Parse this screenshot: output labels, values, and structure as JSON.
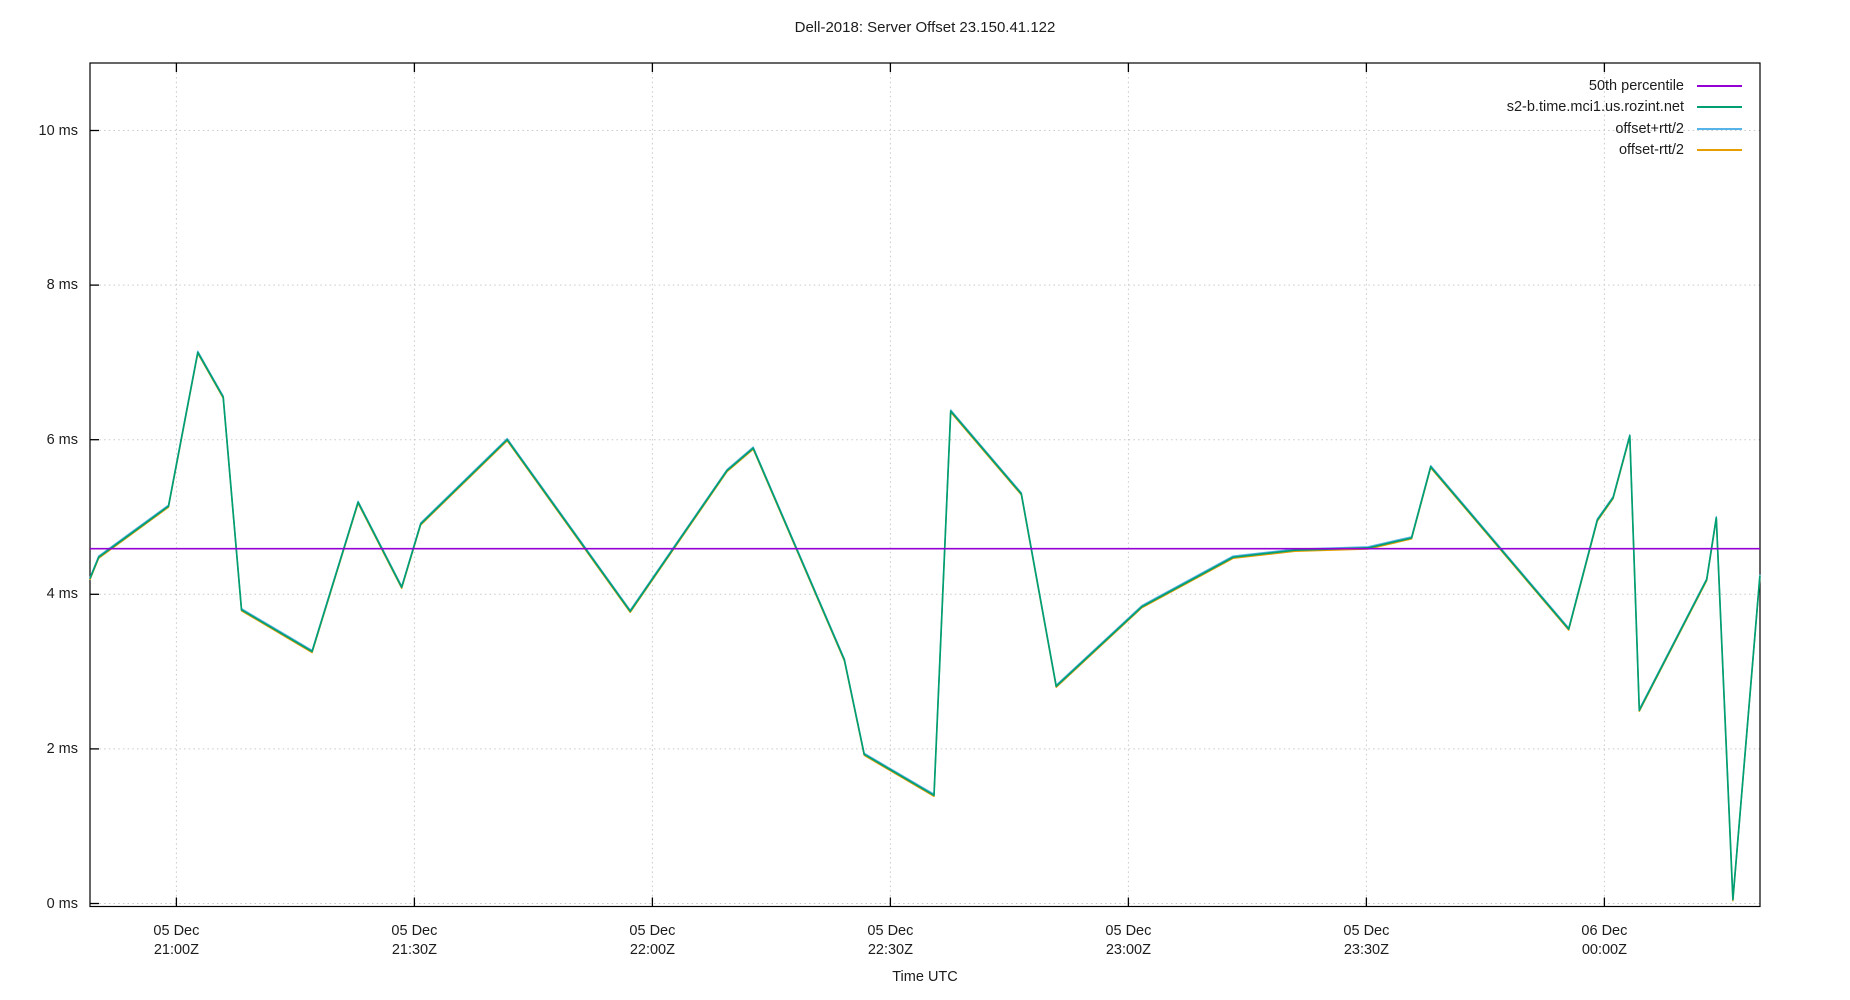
{
  "page": {
    "background": "#ffffff",
    "text_color": "#1c1c1c",
    "grid_color": "#c9c9c9",
    "border_color": "#000000"
  },
  "chart_data": {
    "type": "line",
    "title": "Dell-2018: Server Offset 23.150.41.122",
    "xlabel": "Time UTC",
    "ylabel": "",
    "grid": true,
    "legend_position": "top-right-inside",
    "ylim_ms": [
      0,
      10.87
    ],
    "xlim_minutes_from_2100Z": [
      -10.9,
      199.6
    ],
    "y_ticks": [
      {
        "value": 0,
        "label": "0 ms"
      },
      {
        "value": 2,
        "label": "2 ms"
      },
      {
        "value": 4,
        "label": "4 ms"
      },
      {
        "value": 6,
        "label": "6 ms"
      },
      {
        "value": 8,
        "label": "8 ms"
      },
      {
        "value": 10,
        "label": "10 ms"
      }
    ],
    "x_ticks": [
      {
        "minutes": 0,
        "line1": "05 Dec",
        "line2": "21:00Z"
      },
      {
        "minutes": 30,
        "line1": "05 Dec",
        "line2": "21:30Z"
      },
      {
        "minutes": 60,
        "line1": "05 Dec",
        "line2": "22:00Z"
      },
      {
        "minutes": 90,
        "line1": "05 Dec",
        "line2": "22:30Z"
      },
      {
        "minutes": 120,
        "line1": "05 Dec",
        "line2": "23:00Z"
      },
      {
        "minutes": 150,
        "line1": "05 Dec",
        "line2": "23:30Z"
      },
      {
        "minutes": 180,
        "line1": "06 Dec",
        "line2": "00:00Z"
      }
    ],
    "series": [
      {
        "key": "percentile-50",
        "name": "50th percentile",
        "color": "#9400D3",
        "style": "hline",
        "value_ms": 4.59
      },
      {
        "key": "server-offset",
        "name": "s2-b.time.mci1.us.rozint.net",
        "color": "#009E73",
        "style": "line",
        "points_minutes_ms": [
          [
            -10.9,
            4.2
          ],
          [
            -9.8,
            4.48
          ],
          [
            -1.0,
            5.14
          ],
          [
            2.7,
            7.13
          ],
          [
            5.9,
            6.55
          ],
          [
            8.2,
            3.8
          ],
          [
            17.1,
            3.26
          ],
          [
            22.9,
            5.19
          ],
          [
            28.4,
            4.09
          ],
          [
            30.8,
            4.91
          ],
          [
            41.7,
            6.0
          ],
          [
            57.2,
            3.78
          ],
          [
            69.4,
            5.6
          ],
          [
            72.7,
            5.89
          ],
          [
            84.2,
            3.15
          ],
          [
            86.7,
            1.93
          ],
          [
            95.5,
            1.4
          ],
          [
            97.6,
            6.37
          ],
          [
            106.5,
            5.3
          ],
          [
            110.9,
            2.81
          ],
          [
            121.7,
            3.84
          ],
          [
            133.2,
            4.48
          ],
          [
            141.0,
            4.57
          ],
          [
            150.2,
            4.6
          ],
          [
            155.7,
            4.73
          ],
          [
            158.1,
            5.65
          ],
          [
            175.5,
            3.55
          ],
          [
            179.1,
            4.96
          ],
          [
            181.1,
            5.25
          ],
          [
            183.2,
            6.05
          ],
          [
            184.4,
            2.5
          ],
          [
            192.9,
            4.19
          ],
          [
            194.1,
            4.99
          ],
          [
            196.2,
            0.05
          ],
          [
            199.6,
            4.24
          ]
        ]
      },
      {
        "key": "offset-plus-rtt",
        "name": "offset+rtt/2",
        "color": "#56B4E9",
        "style": "line",
        "base_series": 1,
        "delta_ms": 0.015,
        "visually_coincident_with_offset": true
      },
      {
        "key": "offset-minus-rtt",
        "name": "offset-rtt/2",
        "color": "#E69F00",
        "style": "line",
        "base_series": 1,
        "delta_ms": -0.015,
        "visually_coincident_with_offset": true
      }
    ]
  }
}
